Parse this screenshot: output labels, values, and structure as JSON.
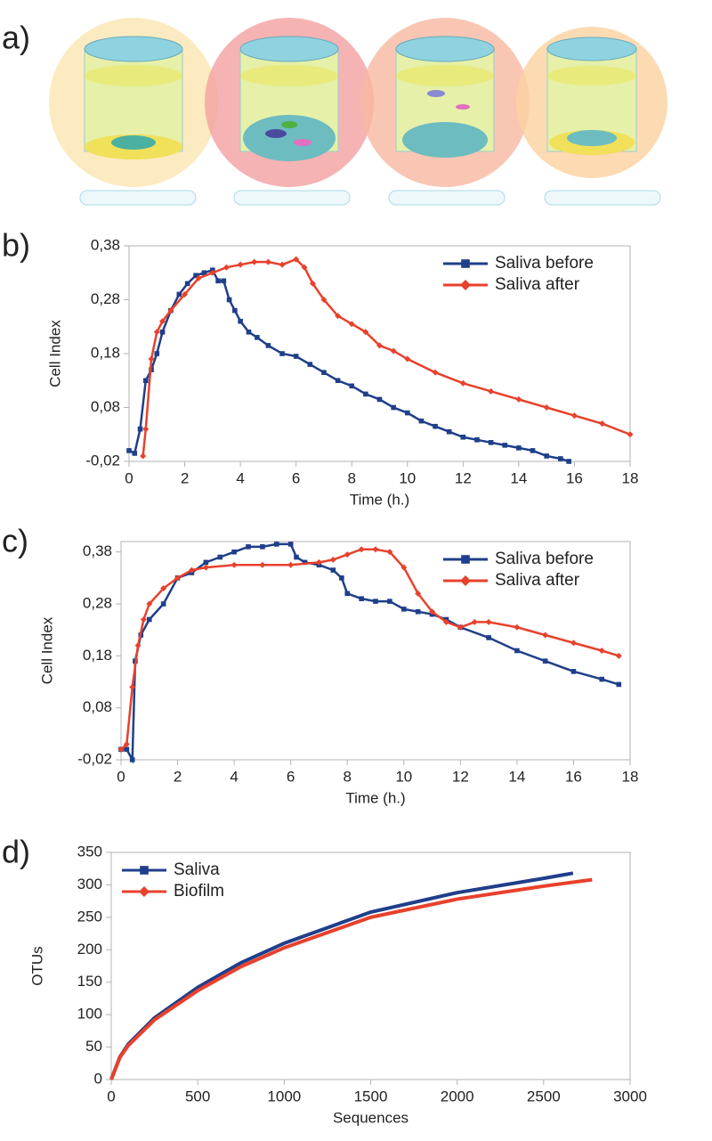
{
  "illustration": {
    "label": "a)"
  },
  "chart_data": [
    {
      "type": "line",
      "label": "b)",
      "xlabel": "Time (h.)",
      "ylabel": "Cell Index",
      "xlim": [
        0,
        18
      ],
      "ylim": [
        -0.02,
        0.38
      ],
      "xticks": [
        0,
        2,
        4,
        6,
        8,
        10,
        12,
        14,
        16,
        18
      ],
      "yticks": [
        {
          "value": -0.02,
          "label": "-0,02"
        },
        {
          "value": 0.08,
          "label": "0,08"
        },
        {
          "value": 0.18,
          "label": "0,18"
        },
        {
          "value": 0.28,
          "label": "0,28"
        },
        {
          "value": 0.38,
          "label": "0,38"
        }
      ],
      "legend": "upper right",
      "markers": true,
      "series": [
        {
          "name": "Saliva before",
          "color": "#1f3f8a",
          "marker": "square",
          "x": [
            0,
            0.2,
            0.4,
            0.6,
            0.8,
            1.0,
            1.2,
            1.5,
            1.8,
            2.1,
            2.4,
            2.7,
            3.0,
            3.2,
            3.4,
            3.6,
            3.8,
            4.0,
            4.3,
            4.6,
            5.0,
            5.5,
            6.0,
            6.5,
            7.0,
            7.5,
            8.0,
            8.5,
            9.0,
            9.5,
            10.0,
            10.5,
            11.0,
            11.5,
            12.0,
            12.5,
            13.0,
            13.5,
            14.0,
            14.5,
            15.0,
            15.5,
            15.8
          ],
          "values": [
            0.0,
            -0.005,
            0.04,
            0.13,
            0.15,
            0.18,
            0.22,
            0.26,
            0.29,
            0.31,
            0.325,
            0.33,
            0.335,
            0.315,
            0.315,
            0.28,
            0.26,
            0.24,
            0.22,
            0.21,
            0.195,
            0.18,
            0.175,
            0.16,
            0.145,
            0.13,
            0.12,
            0.105,
            0.095,
            0.08,
            0.07,
            0.055,
            0.045,
            0.035,
            0.025,
            0.02,
            0.015,
            0.01,
            0.005,
            0.0,
            -0.01,
            -0.015,
            -0.02
          ]
        },
        {
          "name": "Saliva after",
          "color": "#e8412c",
          "marker": "diamond",
          "x": [
            0.5,
            0.6,
            0.8,
            1.0,
            1.2,
            1.5,
            2.0,
            2.5,
            3.0,
            3.5,
            4.0,
            4.5,
            5.0,
            5.5,
            6.0,
            6.3,
            6.6,
            7.0,
            7.5,
            8.0,
            8.5,
            9.0,
            9.5,
            10.0,
            11.0,
            12.0,
            13.0,
            14.0,
            15.0,
            16.0,
            17.0,
            18.0
          ],
          "values": [
            -0.01,
            0.04,
            0.17,
            0.22,
            0.24,
            0.26,
            0.29,
            0.32,
            0.33,
            0.34,
            0.345,
            0.35,
            0.35,
            0.345,
            0.355,
            0.34,
            0.31,
            0.28,
            0.25,
            0.235,
            0.22,
            0.195,
            0.185,
            0.17,
            0.145,
            0.125,
            0.11,
            0.095,
            0.08,
            0.065,
            0.05,
            0.03
          ]
        }
      ]
    },
    {
      "type": "line",
      "label": "c)",
      "xlabel": "Time (h.)",
      "ylabel": "Cell Index",
      "xlim": [
        0,
        18
      ],
      "ylim": [
        -0.02,
        0.4
      ],
      "xticks": [
        0,
        2,
        4,
        6,
        8,
        10,
        12,
        14,
        16,
        18
      ],
      "yticks": [
        {
          "value": -0.02,
          "label": "-0,02"
        },
        {
          "value": 0.08,
          "label": "0,08"
        },
        {
          "value": 0.18,
          "label": "0,18"
        },
        {
          "value": 0.28,
          "label": "0,28"
        },
        {
          "value": 0.38,
          "label": "0,38"
        }
      ],
      "legend": "upper right",
      "markers": true,
      "series": [
        {
          "name": "Saliva before",
          "color": "#1f3f8a",
          "marker": "square",
          "x": [
            0,
            0.2,
            0.4,
            0.5,
            0.7,
            1.0,
            1.5,
            2.0,
            2.5,
            3.0,
            3.5,
            4.0,
            4.5,
            5.0,
            5.5,
            6.0,
            6.2,
            6.5,
            7.0,
            7.5,
            7.8,
            8.0,
            8.5,
            9.0,
            9.5,
            10.0,
            10.5,
            11.0,
            11.5,
            12.0,
            13.0,
            14.0,
            15.0,
            16.0,
            17.0,
            17.6
          ],
          "values": [
            0.0,
            0.0,
            -0.02,
            0.17,
            0.22,
            0.25,
            0.28,
            0.33,
            0.34,
            0.36,
            0.37,
            0.38,
            0.39,
            0.39,
            0.395,
            0.395,
            0.37,
            0.36,
            0.355,
            0.345,
            0.33,
            0.3,
            0.29,
            0.285,
            0.285,
            0.27,
            0.265,
            0.26,
            0.25,
            0.235,
            0.215,
            0.19,
            0.17,
            0.15,
            0.135,
            0.125
          ]
        },
        {
          "name": "Saliva after",
          "color": "#e8412c",
          "marker": "diamond",
          "x": [
            0,
            0.2,
            0.4,
            0.6,
            0.8,
            1.0,
            1.5,
            2.0,
            2.5,
            3.0,
            4.0,
            5.0,
            6.0,
            7.0,
            7.5,
            8.0,
            8.5,
            9.0,
            9.5,
            10.0,
            10.5,
            11.0,
            11.5,
            12.0,
            12.5,
            13.0,
            14.0,
            15.0,
            16.0,
            17.0,
            17.6
          ],
          "values": [
            0.0,
            0.01,
            0.12,
            0.2,
            0.25,
            0.28,
            0.31,
            0.33,
            0.345,
            0.35,
            0.355,
            0.355,
            0.355,
            0.36,
            0.365,
            0.375,
            0.385,
            0.385,
            0.38,
            0.35,
            0.3,
            0.265,
            0.245,
            0.235,
            0.245,
            0.245,
            0.235,
            0.22,
            0.205,
            0.19,
            0.18
          ]
        }
      ]
    },
    {
      "type": "line",
      "label": "d)",
      "xlabel": "Sequences",
      "ylabel": "OTUs",
      "xlim": [
        0,
        3000
      ],
      "ylim": [
        0,
        350
      ],
      "xticks": [
        0,
        500,
        1000,
        1500,
        2000,
        2500,
        3000
      ],
      "yticks": [
        0,
        50,
        100,
        150,
        200,
        250,
        300,
        350
      ],
      "legend": "upper left",
      "markers": false,
      "series": [
        {
          "name": "Saliva",
          "color": "#1f3f8a",
          "marker": "square",
          "x": [
            0,
            50,
            100,
            250,
            500,
            750,
            1000,
            1500,
            2000,
            2500,
            2670
          ],
          "values": [
            0,
            35,
            55,
            95,
            142,
            180,
            210,
            258,
            288,
            310,
            318
          ]
        },
        {
          "name": "Biofilm",
          "color": "#e8412c",
          "marker": "diamond",
          "x": [
            0,
            50,
            100,
            250,
            500,
            750,
            1000,
            1500,
            2000,
            2500,
            2780
          ],
          "values": [
            0,
            34,
            53,
            92,
            137,
            174,
            203,
            250,
            278,
            298,
            308
          ]
        }
      ]
    }
  ]
}
